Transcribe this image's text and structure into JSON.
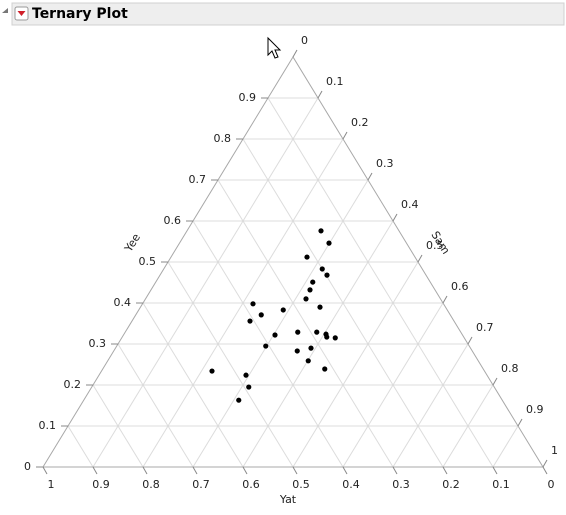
{
  "header": {
    "title": "Ternary Plot"
  },
  "chart_data": {
    "type": "ternary",
    "yat_label": "Yat",
    "yee_label": "Yee",
    "sam_label": "Sam",
    "yat_ticks": [
      1,
      0.9,
      0.8,
      0.7,
      0.6,
      0.5,
      0.4,
      0.3,
      0.2,
      0.1,
      0
    ],
    "yee_ticks": [
      0,
      0.1,
      0.2,
      0.3,
      0.4,
      0.5,
      0.6,
      0.7,
      0.8,
      0.9
    ],
    "sam_ticks": [
      0,
      0.1,
      0.2,
      0.3,
      0.4,
      0.5,
      0.6,
      0.7,
      0.8,
      0.9,
      1
    ],
    "grid": true,
    "color": "#000000",
    "yat": [
      0.156,
      0.155,
      0.216,
      0.2,
      0.198,
      0.235,
      0.25,
      0.269,
      0.381,
      0.251,
      0.378,
      0.328,
      0.408,
      0.375,
      0.326,
      0.288,
      0.272,
      0.258,
      0.274,
      0.407,
      0.319,
      0.35,
      0.34,
      0.317,
      0.545,
      0.482,
      0.491,
      0.527
    ],
    "yee": [
      0.576,
      0.546,
      0.512,
      0.483,
      0.468,
      0.451,
      0.432,
      0.41,
      0.398,
      0.39,
      0.371,
      0.383,
      0.356,
      0.322,
      0.329,
      0.329,
      0.324,
      0.315,
      0.317,
      0.295,
      0.29,
      0.283,
      0.259,
      0.239,
      0.234,
      0.224,
      0.195,
      0.163
    ],
    "sam": [
      0.268,
      0.299,
      0.272,
      0.317,
      0.334,
      0.314,
      0.318,
      0.321,
      0.221,
      0.359,
      0.251,
      0.289,
      0.236,
      0.303,
      0.345,
      0.383,
      0.404,
      0.427,
      0.409,
      0.298,
      0.391,
      0.367,
      0.401,
      0.444,
      0.221,
      0.294,
      0.314,
      0.31
    ]
  }
}
